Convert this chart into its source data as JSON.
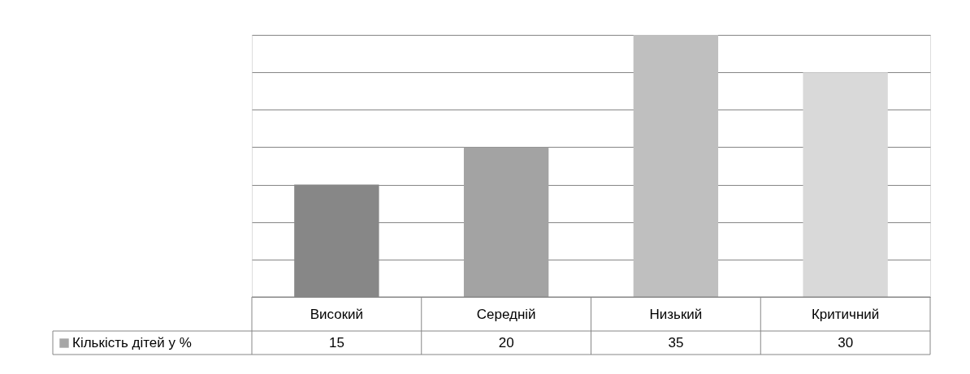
{
  "chart_data": {
    "type": "bar",
    "categories": [
      "Високий",
      "Середній",
      "Низький",
      "Критичний"
    ],
    "series": [
      {
        "name": "Кількість дітей у %",
        "color": "#a6a6a6",
        "colors": [
          "#878787",
          "#a3a3a3",
          "#bfbfbf",
          "#d9d9d9"
        ],
        "values": [
          15,
          20,
          35,
          30
        ]
      }
    ],
    "ylim": [
      0,
      35
    ],
    "yticks": [
      {
        "value": 0,
        "label": null
      },
      {
        "value": 5,
        "label": null
      },
      {
        "value": 10,
        "label": null
      },
      {
        "value": 15,
        "label": null
      },
      {
        "value": 20,
        "label": null
      },
      {
        "value": 25,
        "label": null
      },
      {
        "value": 30,
        "label": null
      },
      {
        "value": 35,
        "label": null
      }
    ],
    "grid": "y",
    "data_labels": true,
    "legend": "bottom"
  }
}
